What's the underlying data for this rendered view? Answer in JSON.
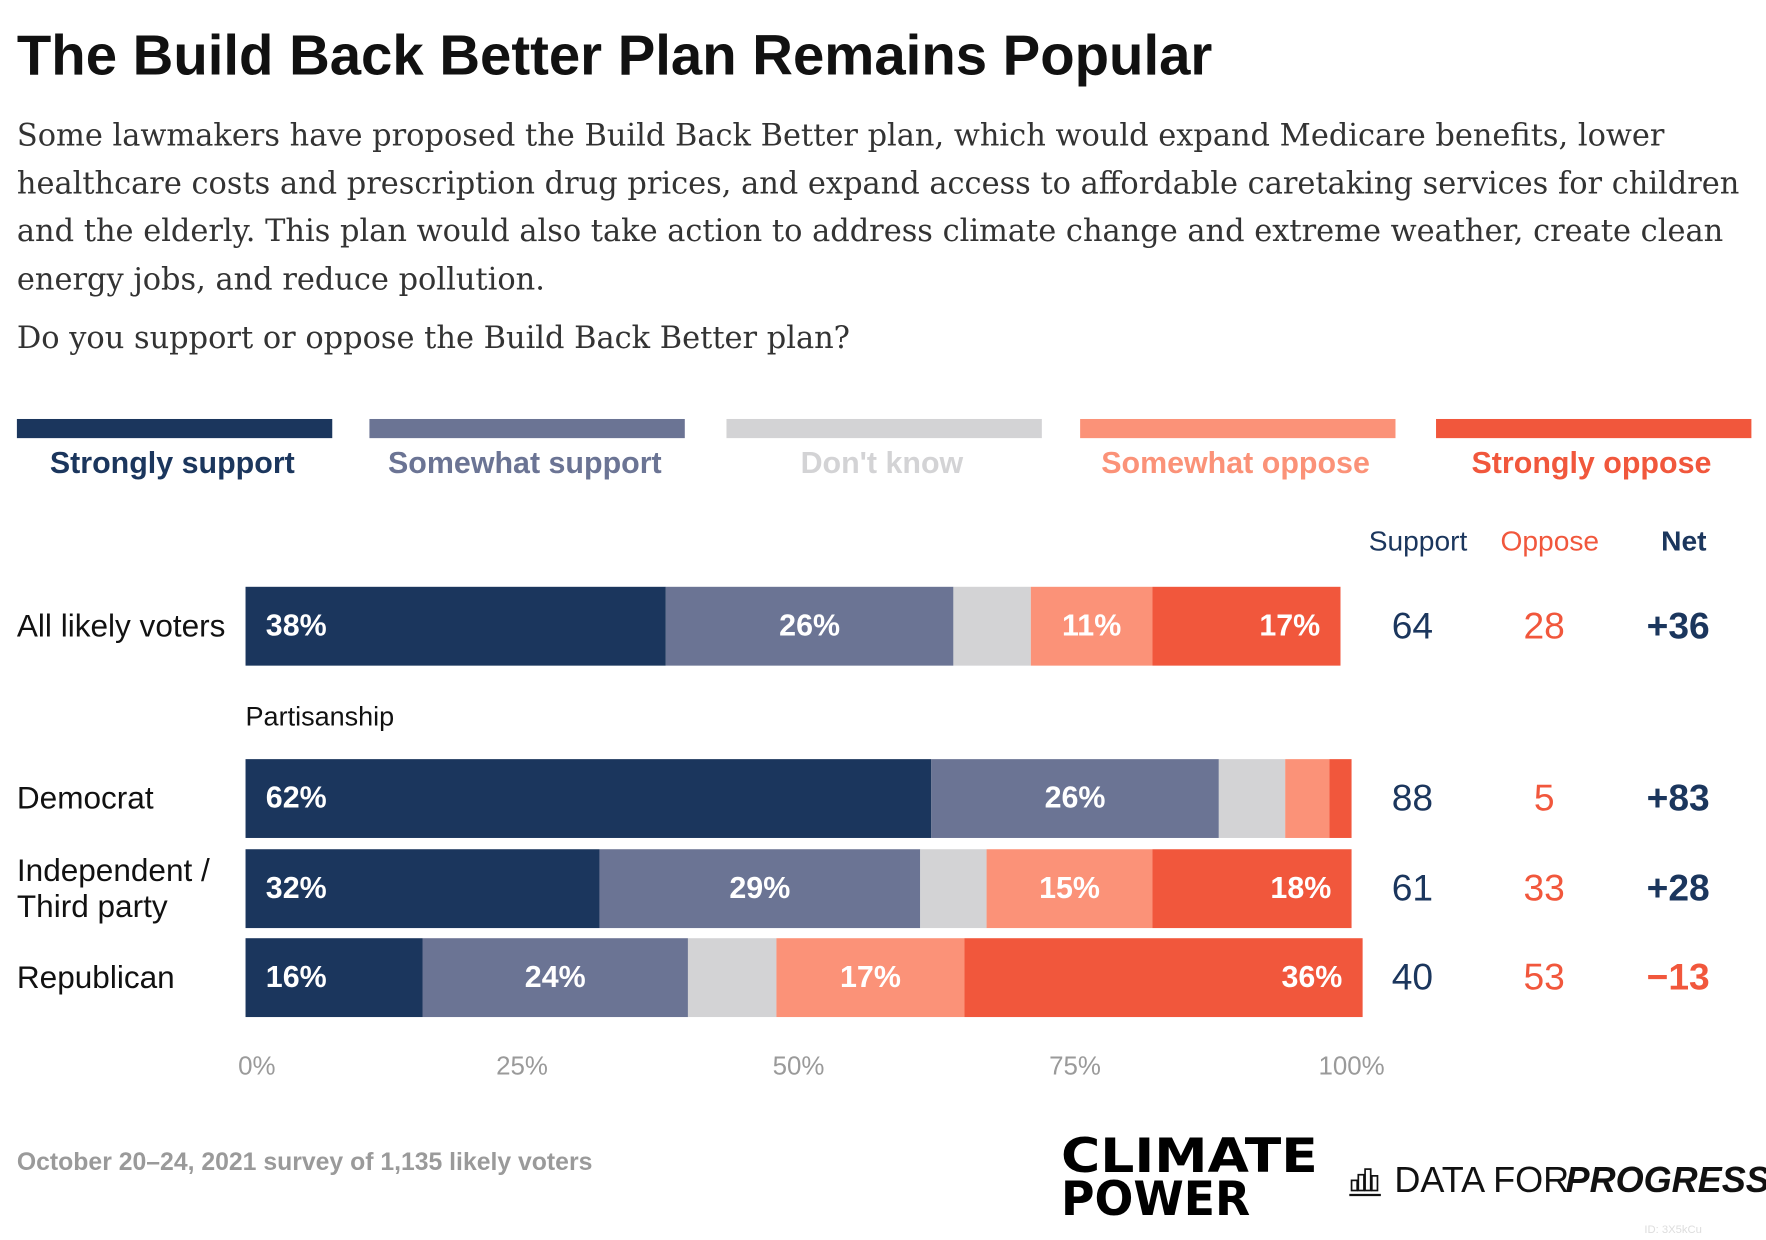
{
  "chart_data": {
    "type": "bar",
    "orientation": "horizontal",
    "stacked": true,
    "title": "The Build Back Better Plan Remains Popular",
    "subtitle": "Some lawmakers have proposed the Build Back Better plan, which would expand Medicare benefits, lower healthcare costs and prescription drug prices, and expand access to affordable caretaking services for children and the elderly. This plan would also take action to address climate change and extreme weather, create clean energy jobs, and reduce pollution.",
    "question": "Do you support or oppose the Build Back Better plan?",
    "categories": [
      "All likely voters",
      "Democrat",
      "Independent / Third party",
      "Republican"
    ],
    "group_label": "Partisanship",
    "series": [
      {
        "name": "Strongly support",
        "color": "#1b365d",
        "values": [
          38,
          62,
          32,
          16
        ],
        "value_labels": [
          "38%",
          "62%",
          "32%",
          "16%"
        ]
      },
      {
        "name": "Somewhat support",
        "color": "#6b7494",
        "values": [
          26,
          26,
          29,
          24
        ],
        "value_labels": [
          "26%",
          "26%",
          "29%",
          "24%"
        ]
      },
      {
        "name": "Don't know",
        "color": "#d3d3d5",
        "values": [
          7,
          6,
          6,
          8
        ],
        "value_labels": [
          null,
          null,
          null,
          null
        ]
      },
      {
        "name": "Somewhat oppose",
        "color": "#fb9278",
        "values": [
          11,
          4,
          15,
          17
        ],
        "value_labels": [
          "11%",
          null,
          "15%",
          "17%"
        ]
      },
      {
        "name": "Strongly oppose",
        "color": "#f1573c",
        "values": [
          17,
          2,
          18,
          36
        ],
        "value_labels": [
          "17%",
          null,
          "18%",
          "36%"
        ]
      }
    ],
    "columns": [
      {
        "name": "Support",
        "color": "#1b365d",
        "values": [
          64,
          88,
          61,
          40
        ]
      },
      {
        "name": "Oppose",
        "color": "#f1573c",
        "values": [
          28,
          5,
          33,
          53
        ]
      },
      {
        "name": "Net",
        "values": [
          36,
          83,
          28,
          -13
        ],
        "value_labels": [
          "+36",
          "+83",
          "+28",
          "−13"
        ]
      }
    ],
    "xlim": [
      0,
      100
    ],
    "xticks": [
      {
        "value": 0,
        "label": "0%"
      },
      {
        "value": 25,
        "label": "25%"
      },
      {
        "value": 50,
        "label": "50%"
      },
      {
        "value": 75,
        "label": "75%"
      },
      {
        "value": 100,
        "label": "100%"
      }
    ],
    "grid": false,
    "source": "October 20–24, 2021 survey of 1,135 likely voters",
    "logo_climate_power": [
      "CLIMATE",
      "POWER"
    ],
    "logo_data_for_progress": [
      "DATA FOR",
      "PROGRESS"
    ],
    "id_note": "ID: 3X5kCu"
  }
}
